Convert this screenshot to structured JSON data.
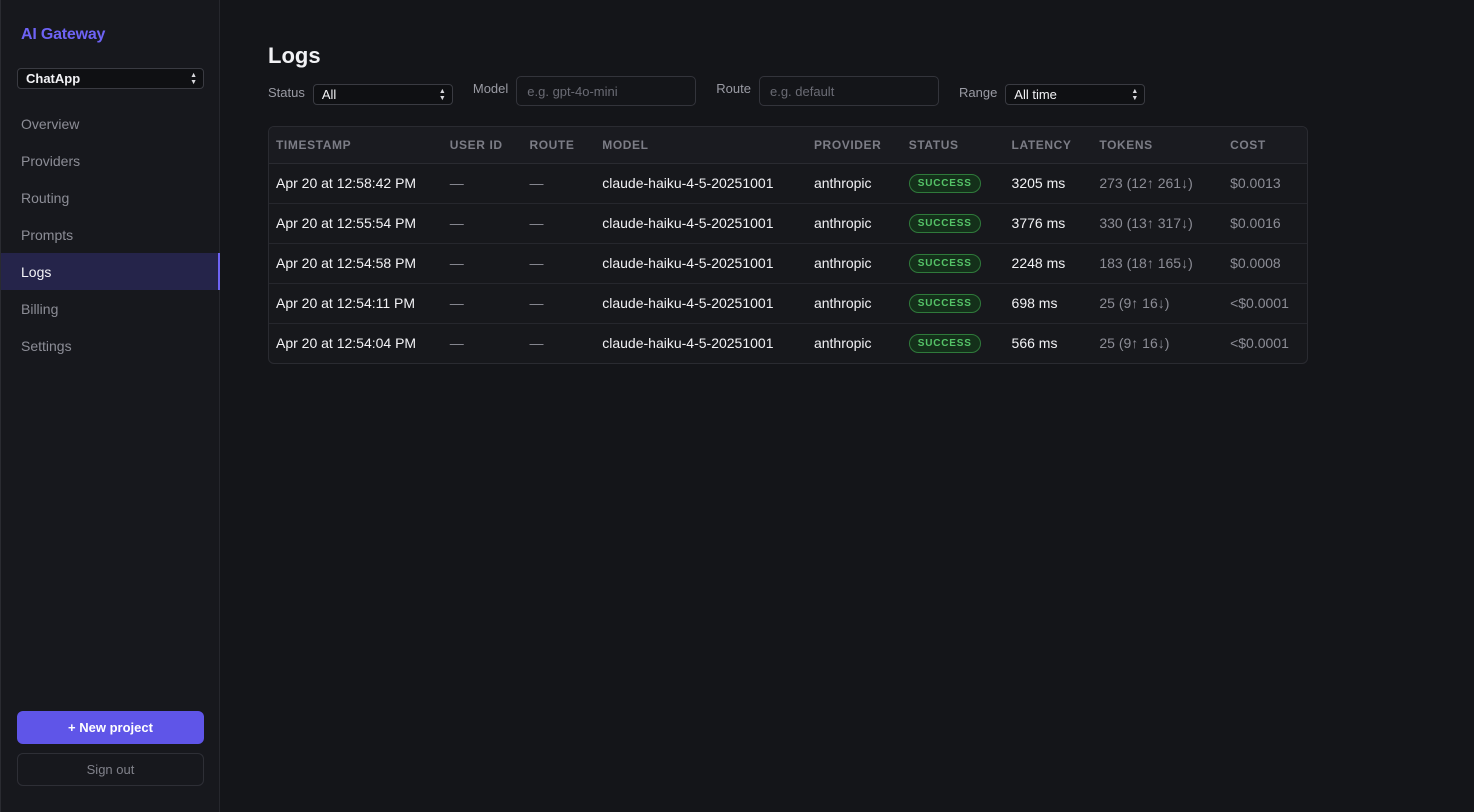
{
  "sidebar": {
    "brand": "AI Gateway",
    "project": "ChatApp",
    "items": [
      {
        "label": "Overview"
      },
      {
        "label": "Providers"
      },
      {
        "label": "Routing"
      },
      {
        "label": "Prompts"
      },
      {
        "label": "Logs"
      },
      {
        "label": "Billing"
      },
      {
        "label": "Settings"
      }
    ],
    "active_item": "Logs",
    "new_project_label": "+ New project",
    "sign_out_label": "Sign out"
  },
  "page": {
    "title": "Logs"
  },
  "filters": {
    "status_label": "Status",
    "status_value": "All",
    "model_label": "Model",
    "model_value": "",
    "model_placeholder": "e.g. gpt-4o-mini",
    "route_label": "Route",
    "route_value": "",
    "route_placeholder": "e.g. default",
    "range_label": "Range",
    "range_value": "All time"
  },
  "table": {
    "headers": [
      "TIMESTAMP",
      "USER ID",
      "ROUTE",
      "MODEL",
      "PROVIDER",
      "STATUS",
      "LATENCY",
      "TOKENS",
      "COST"
    ],
    "rows": [
      {
        "timestamp": "Apr 20 at 12:58:42 PM",
        "user_id": "—",
        "route": "—",
        "model": "claude-haiku-4-5-20251001",
        "provider": "anthropic",
        "status": "SUCCESS",
        "latency": "3205 ms",
        "tokens": "273 (12↑ 261↓)",
        "cost": "$0.0013"
      },
      {
        "timestamp": "Apr 20 at 12:55:54 PM",
        "user_id": "—",
        "route": "—",
        "model": "claude-haiku-4-5-20251001",
        "provider": "anthropic",
        "status": "SUCCESS",
        "latency": "3776 ms",
        "tokens": "330 (13↑ 317↓)",
        "cost": "$0.0016"
      },
      {
        "timestamp": "Apr 20 at 12:54:58 PM",
        "user_id": "—",
        "route": "—",
        "model": "claude-haiku-4-5-20251001",
        "provider": "anthropic",
        "status": "SUCCESS",
        "latency": "2248 ms",
        "tokens": "183 (18↑ 165↓)",
        "cost": "$0.0008"
      },
      {
        "timestamp": "Apr 20 at 12:54:11 PM",
        "user_id": "—",
        "route": "—",
        "model": "claude-haiku-4-5-20251001",
        "provider": "anthropic",
        "status": "SUCCESS",
        "latency": "698 ms",
        "tokens": "25 (9↑ 16↓)",
        "cost": "<$0.0001"
      },
      {
        "timestamp": "Apr 20 at 12:54:04 PM",
        "user_id": "—",
        "route": "—",
        "model": "claude-haiku-4-5-20251001",
        "provider": "anthropic",
        "status": "SUCCESS",
        "latency": "566 ms",
        "tokens": "25 (9↑ 16↓)",
        "cost": "<$0.0001"
      }
    ]
  },
  "colors": {
    "accent": "#6e63f5",
    "button": "#5f55e8",
    "success": "#55c468",
    "background": "#141519"
  }
}
